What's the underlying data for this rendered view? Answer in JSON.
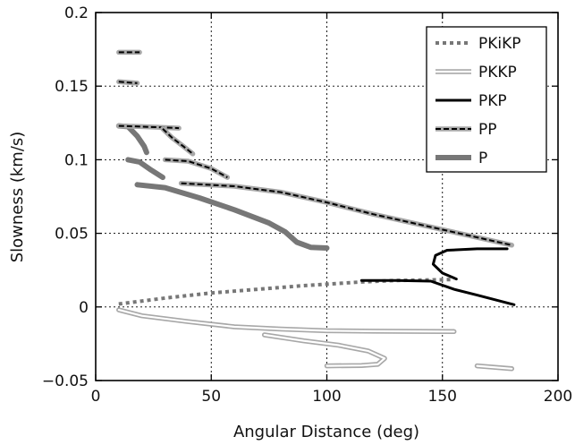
{
  "chart_data": {
    "type": "line",
    "title": "",
    "xlabel": "Angular Distance (deg)",
    "ylabel": "Slowness (km/s)",
    "xlim": [
      0,
      200
    ],
    "ylim": [
      -0.05,
      0.2
    ],
    "xticks": [
      0,
      50,
      100,
      150,
      200
    ],
    "yticks": [
      -0.05,
      0,
      0.05,
      0.1,
      0.15,
      0.2
    ],
    "xtick_labels": [
      "0",
      "50",
      "100",
      "150",
      "200"
    ],
    "ytick_labels": [
      "−0.05",
      "0",
      "0.05",
      "0.1",
      "0.15",
      "0.2"
    ],
    "grid": true,
    "legend_position": "top-right",
    "colors": {
      "grey": "#777777",
      "light_grey": "#a8a8a8",
      "black": "#000000"
    },
    "series": [
      {
        "name": "PKiKP",
        "style": "dotted-grey",
        "segments": [
          [
            [
              10,
              0.002
            ],
            [
              30,
              0.006
            ],
            [
              50,
              0.0095
            ],
            [
              70,
              0.012
            ],
            [
              90,
              0.0145
            ],
            [
              110,
              0.0165
            ],
            [
              115,
              0.017
            ],
            [
              130,
              0.018
            ],
            [
              150,
              0.0185
            ],
            [
              155,
              0.0187
            ]
          ]
        ]
      },
      {
        "name": "PKKP",
        "style": "double-light-grey",
        "segments": [
          [
            [
              10,
              -0.002
            ],
            [
              20,
              -0.006
            ],
            [
              40,
              -0.01
            ],
            [
              60,
              -0.0135
            ],
            [
              80,
              -0.015
            ],
            [
              100,
              -0.0162
            ],
            [
              120,
              -0.0165
            ],
            [
              140,
              -0.0166
            ],
            [
              155,
              -0.0167
            ]
          ],
          [
            [
              73,
              -0.019
            ],
            [
              90,
              -0.023
            ],
            [
              105,
              -0.026
            ],
            [
              118,
              -0.03
            ],
            [
              125,
              -0.035
            ],
            [
              122,
              -0.039
            ],
            [
              115,
              -0.0398
            ],
            [
              100,
              -0.04
            ]
          ],
          [
            [
              165,
              -0.04
            ],
            [
              180,
              -0.042
            ]
          ]
        ]
      },
      {
        "name": "PKP",
        "style": "solid-black",
        "segments": [
          [
            [
              115,
              0.018
            ],
            [
              130,
              0.018
            ],
            [
              145,
              0.0175
            ],
            [
              155,
              0.012
            ],
            [
              165,
              0.008
            ],
            [
              181,
              0.0015
            ]
          ],
          [
            [
              156,
              0.019
            ],
            [
              150,
              0.023
            ],
            [
              146,
              0.029
            ],
            [
              147,
              0.035
            ],
            [
              152,
              0.0385
            ],
            [
              165,
              0.0395
            ],
            [
              178,
              0.0395
            ]
          ]
        ]
      },
      {
        "name": "PP",
        "style": "dashed-on-grey",
        "segments": [
          [
            [
              10,
              0.173
            ],
            [
              19,
              0.173
            ]
          ],
          [
            [
              10,
              0.153
            ],
            [
              18,
              0.152
            ]
          ],
          [
            [
              10,
              0.123
            ],
            [
              20,
              0.1225
            ],
            [
              36,
              0.1215
            ]
          ],
          [
            [
              29,
              0.121
            ],
            [
              33,
              0.115
            ],
            [
              38,
              0.109
            ],
            [
              42,
              0.104
            ]
          ],
          [
            [
              30,
              0.1
            ],
            [
              40,
              0.099
            ],
            [
              50,
              0.094
            ],
            [
              57,
              0.088
            ]
          ],
          [
            [
              37,
              0.084
            ],
            [
              60,
              0.082
            ],
            [
              80,
              0.078
            ],
            [
              100,
              0.071
            ],
            [
              120,
              0.063
            ],
            [
              140,
              0.056
            ],
            [
              160,
              0.049
            ],
            [
              180,
              0.042
            ]
          ]
        ]
      },
      {
        "name": "P",
        "style": "thick-grey",
        "segments": [
          [
            [
              10,
              0.123
            ],
            [
              14,
              0.1225
            ],
            [
              18,
              0.116
            ],
            [
              21,
              0.109
            ],
            [
              22,
              0.105
            ]
          ],
          [
            [
              14,
              0.1
            ],
            [
              19,
              0.0985
            ],
            [
              24,
              0.093
            ],
            [
              29,
              0.088
            ]
          ],
          [
            [
              18,
              0.083
            ],
            [
              30,
              0.081
            ],
            [
              45,
              0.074
            ],
            [
              60,
              0.066
            ],
            [
              75,
              0.057
            ],
            [
              82,
              0.051
            ],
            [
              87,
              0.044
            ],
            [
              93,
              0.0405
            ],
            [
              100,
              0.04
            ]
          ]
        ]
      }
    ]
  }
}
